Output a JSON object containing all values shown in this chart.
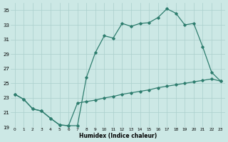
{
  "xlabel": "Humidex (Indice chaleur)",
  "line1_y": [
    23.5,
    22.8,
    21.5,
    21.2,
    20.2,
    19.3,
    19.2,
    19.2,
    25.8,
    29.2,
    31.5,
    31.2,
    33.2,
    32.8,
    33.2,
    33.3,
    34.0,
    35.2,
    34.6,
    33.0,
    33.2,
    30.0,
    26.5,
    25.3
  ],
  "line2_y": [
    23.5,
    22.8,
    21.5,
    21.2,
    20.2,
    19.3,
    19.2,
    22.3,
    22.5,
    22.7,
    23.0,
    23.2,
    23.5,
    23.7,
    23.9,
    24.1,
    24.4,
    24.6,
    24.8,
    25.0,
    25.2,
    25.4,
    25.6,
    25.3
  ],
  "line_color": "#2e7d6e",
  "bg_color": "#cce8e5",
  "grid_color": "#aacfcc",
  "ylim": [
    19,
    36
  ],
  "yticks": [
    19,
    21,
    23,
    25,
    27,
    29,
    31,
    33,
    35
  ],
  "xlim": [
    -0.5,
    23.5
  ],
  "xticks": [
    0,
    1,
    2,
    3,
    4,
    5,
    6,
    7,
    8,
    9,
    10,
    11,
    12,
    13,
    14,
    15,
    16,
    17,
    18,
    19,
    20,
    21,
    22,
    23
  ],
  "xtick_labels": [
    "0",
    "1",
    "2",
    "3",
    "4",
    "5",
    "6",
    "7",
    "8",
    "9",
    "10",
    "11",
    "12",
    "13",
    "14",
    "15",
    "16",
    "17",
    "18",
    "19",
    "20",
    "21",
    "22",
    "23"
  ]
}
